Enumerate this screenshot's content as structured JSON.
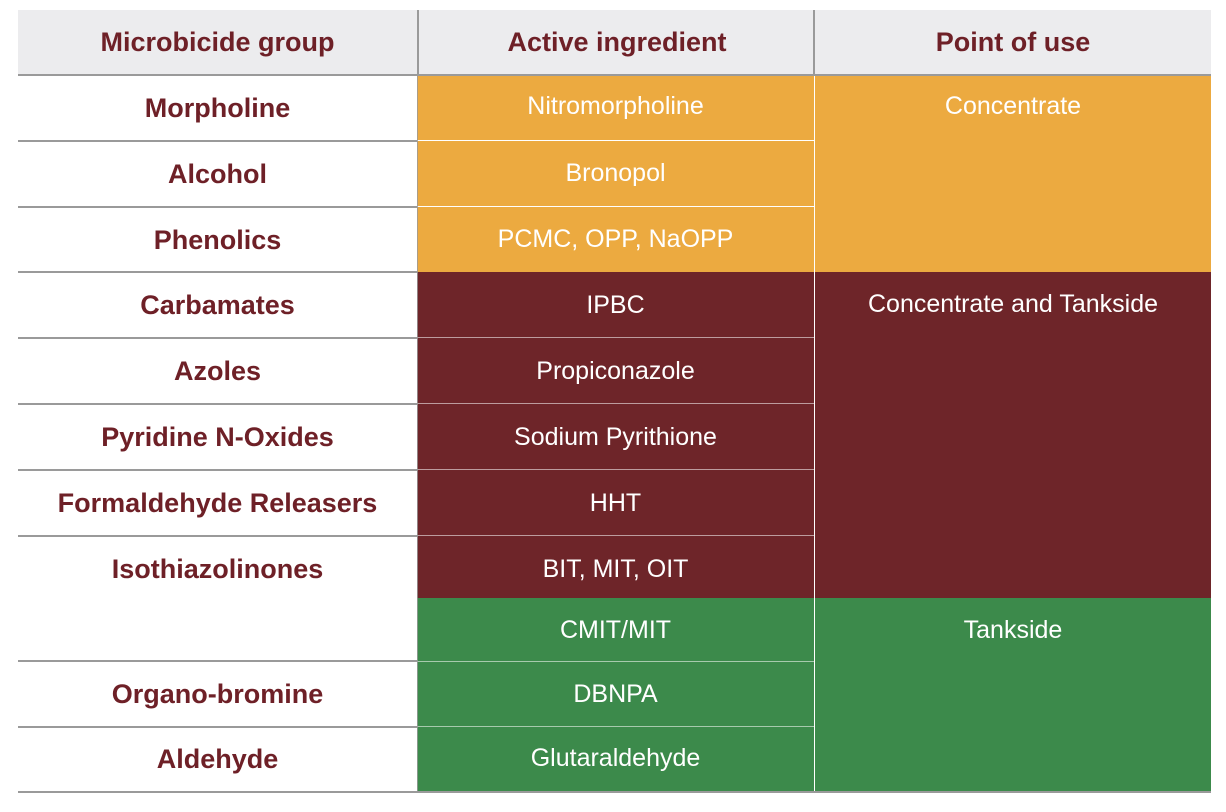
{
  "headers": {
    "group": "Microbicide group",
    "ingredient": "Active ingredient",
    "point": "Point of use"
  },
  "colors": {
    "orange": "#ecaa40",
    "maroon": "#6e2529",
    "green": "#3c8a4b",
    "header_text": "#6e2027",
    "header_bg": "#ececee"
  },
  "groups": [
    "Morpholine",
    "Alcohol",
    "Phenolics",
    "Carbamates",
    "Azoles",
    "Pyridine N-Oxides",
    "Formaldehyde Releasers",
    "Isothiazolinones",
    "Organo-bromine",
    "Aldehyde"
  ],
  "ingredients": [
    "Nitromorpholine",
    "Bronopol",
    "PCMC, OPP, NaOPP",
    "IPBC",
    "Propiconazole",
    "Sodium Pyrithione",
    "HHT",
    "BIT, MIT, OIT",
    "CMIT/MIT",
    "DBNPA",
    "Glutaraldehyde"
  ],
  "points": [
    "Concentrate",
    "Concentrate and Tankside",
    "Tankside"
  ]
}
